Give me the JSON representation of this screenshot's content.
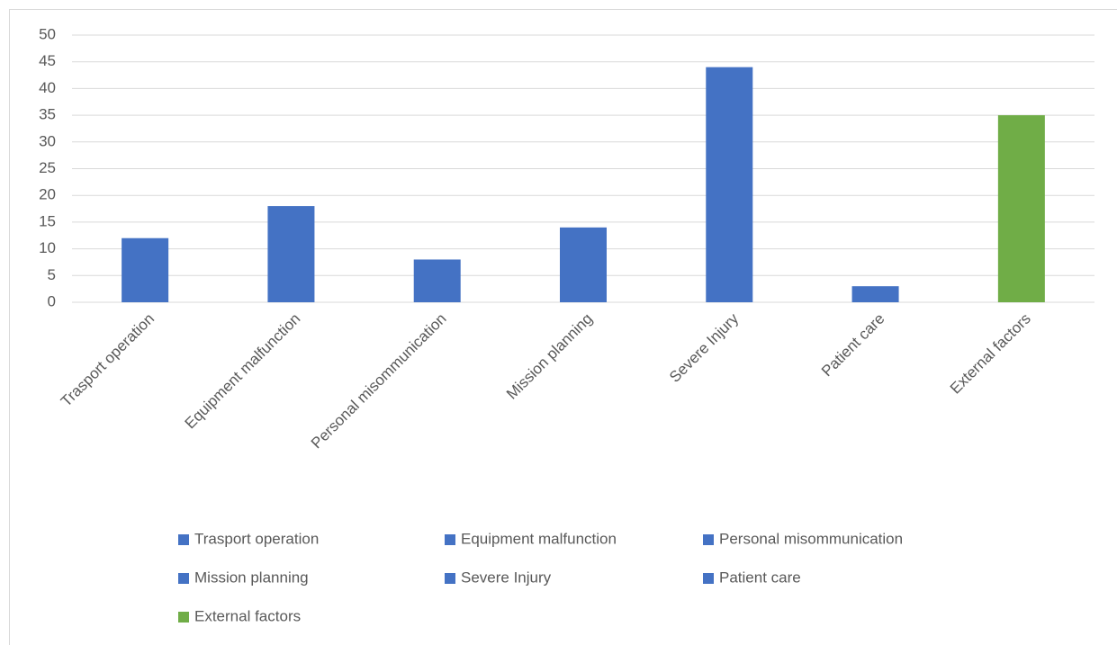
{
  "chart_data": {
    "type": "bar",
    "categories": [
      "Trasport operation",
      "Equipment malfunction",
      "Personal misommunication",
      "Mission planning",
      "Severe Injury",
      "Patient care",
      "External factors"
    ],
    "values": [
      12,
      18,
      8,
      14,
      44,
      3,
      35
    ],
    "colors": [
      "#4472c4",
      "#4472c4",
      "#4472c4",
      "#4472c4",
      "#4472c4",
      "#4472c4",
      "#70ad47"
    ],
    "ylim": [
      0,
      50
    ],
    "yticks": [
      0,
      5,
      10,
      15,
      20,
      25,
      30,
      35,
      40,
      45,
      50
    ],
    "grid": true,
    "legend": "bottom"
  }
}
